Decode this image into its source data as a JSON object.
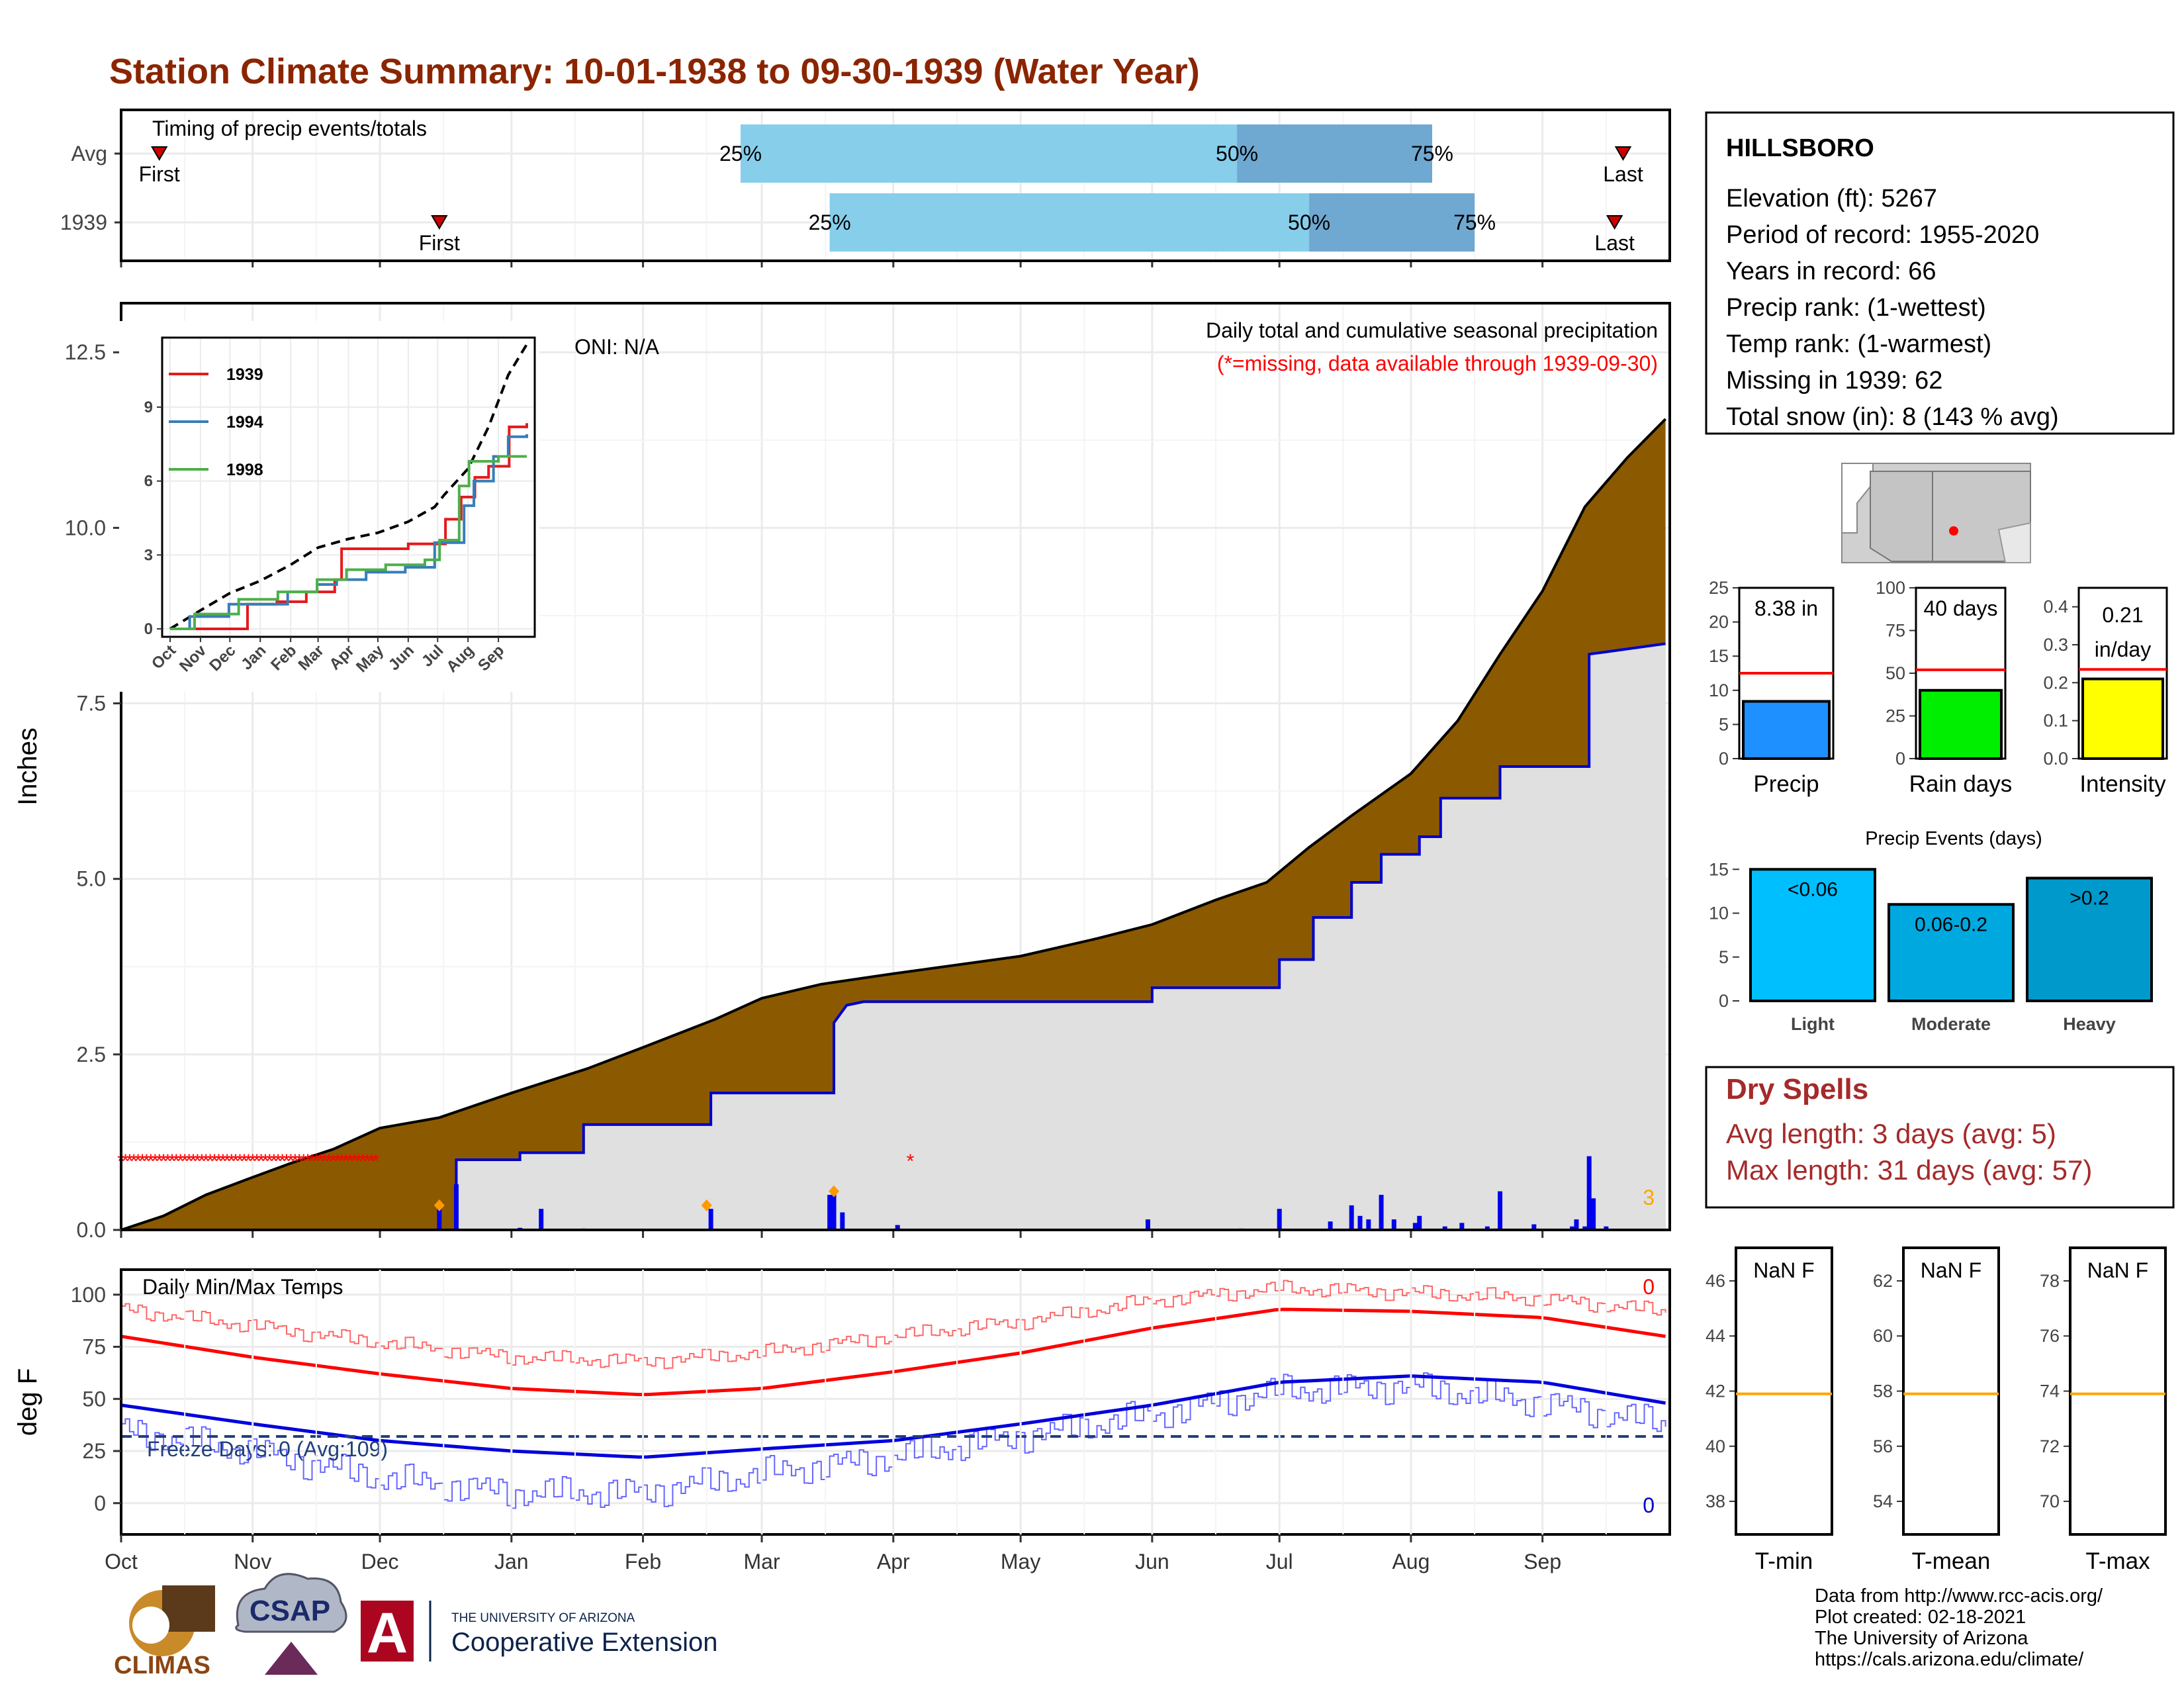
{
  "page": {
    "title": "Station Climate Summary: 10-01-1938 to 09-30-1939 (Water Year)",
    "credits": [
      "Data from http://www.rcc-acis.org/",
      "Plot created: 02-18-2021",
      "The University of Arizona",
      "https://cals.arizona.edu/climate/"
    ],
    "logos": {
      "climas": "CLIMAS",
      "csap": "CSAP",
      "ua_line1": "THE UNIVERSITY OF ARIZONA",
      "ua_line2": "Cooperative Extension",
      "ua_letter": "A"
    }
  },
  "info_box": {
    "station": "HILLSBORO",
    "lines": [
      "Elevation (ft): 5267",
      "Period of record: 1955-2020",
      "Years in record: 66",
      "Precip rank:  (1-wettest)",
      "Temp rank:  (1-warmest)",
      "Missing in 1939: 62",
      "Total snow (in): 8 (143 % avg)"
    ]
  },
  "dry_spells": {
    "title": "Dry Spells",
    "lines": [
      "Avg length: 3 days (avg: 5)",
      "Max length: 31 days (avg: 57)"
    ]
  },
  "chart_data": [
    {
      "type": "bar",
      "name": "timing",
      "title": "Timing of precip events/totals",
      "categories": [
        "Avg",
        "1939"
      ],
      "x_axis": "day of water year (Oct 1 = 0)",
      "rows": [
        {
          "label": "Avg",
          "first": 9,
          "p25": 146,
          "p50": 263,
          "p75": 309,
          "last": 354,
          "first_label": "First",
          "last_label": "Last",
          "p25_label": "25%",
          "p50_label": "50%",
          "p75_label": "75%"
        },
        {
          "label": "1939",
          "first": 75,
          "p25": 167,
          "p50": 280,
          "p75": 319,
          "last": 352,
          "first_label": "First",
          "last_label": "Last",
          "p25_label": "25%",
          "p50_label": "50%",
          "p75_label": "75%"
        }
      ],
      "colors": {
        "early": "#87ceeb",
        "late": "#6fa8d0",
        "marker": "#cc0000"
      }
    },
    {
      "type": "area",
      "name": "precip",
      "ylabel": "Inches",
      "ylim": [
        0,
        13.2
      ],
      "yticks": [
        "0.0",
        "2.5",
        "5.0",
        "7.5",
        "10.0",
        "12.5"
      ],
      "xticks": [
        "Oct",
        "Nov",
        "Dec",
        "Jan",
        "Feb",
        "Mar",
        "Apr",
        "May",
        "Jun",
        "Jul",
        "Aug",
        "Sep"
      ],
      "month_days": [
        0,
        31,
        61,
        92,
        123,
        151,
        182,
        212,
        243,
        273,
        304,
        335
      ],
      "annotation_right": [
        "Daily total and cumulative seasonal precipitation",
        "(*=missing, data available through 1939-09-30)"
      ],
      "oni": "ONI: N/A",
      "count_label": "3",
      "avg_cumulative": [
        [
          0,
          0
        ],
        [
          10,
          0.2
        ],
        [
          20,
          0.5
        ],
        [
          31,
          0.75
        ],
        [
          40,
          0.95
        ],
        [
          50,
          1.15
        ],
        [
          61,
          1.45
        ],
        [
          75,
          1.6
        ],
        [
          92,
          1.95
        ],
        [
          110,
          2.3
        ],
        [
          123,
          2.6
        ],
        [
          140,
          3.0
        ],
        [
          151,
          3.3
        ],
        [
          165,
          3.5
        ],
        [
          182,
          3.65
        ],
        [
          200,
          3.8
        ],
        [
          212,
          3.9
        ],
        [
          230,
          4.15
        ],
        [
          243,
          4.35
        ],
        [
          258,
          4.7
        ],
        [
          270,
          4.95
        ],
        [
          280,
          5.45
        ],
        [
          290,
          5.9
        ],
        [
          304,
          6.5
        ],
        [
          315,
          7.25
        ],
        [
          325,
          8.2
        ],
        [
          335,
          9.1
        ],
        [
          345,
          10.3
        ],
        [
          355,
          11.0
        ],
        [
          364,
          11.55
        ]
      ],
      "year_cumulative": [
        [
          0,
          0
        ],
        [
          79,
          0
        ],
        [
          79,
          1.0
        ],
        [
          94,
          1.0
        ],
        [
          94,
          1.1
        ],
        [
          109,
          1.1
        ],
        [
          109,
          1.5
        ],
        [
          139,
          1.5
        ],
        [
          139,
          1.95
        ],
        [
          168,
          1.95
        ],
        [
          168,
          2.95
        ],
        [
          171,
          3.2
        ],
        [
          175,
          3.25
        ],
        [
          243,
          3.25
        ],
        [
          243,
          3.45
        ],
        [
          273,
          3.45
        ],
        [
          273,
          3.85
        ],
        [
          281,
          3.85
        ],
        [
          281,
          4.45
        ],
        [
          290,
          4.45
        ],
        [
          290,
          4.95
        ],
        [
          297,
          4.95
        ],
        [
          297,
          5.35
        ],
        [
          306,
          5.35
        ],
        [
          306,
          5.6
        ],
        [
          311,
          5.6
        ],
        [
          311,
          6.15
        ],
        [
          325,
          6.15
        ],
        [
          325,
          6.6
        ],
        [
          346,
          6.6
        ],
        [
          346,
          8.2
        ],
        [
          364,
          8.35
        ]
      ],
      "daily_precip": [
        [
          75,
          0.3
        ],
        [
          79,
          0.65
        ],
        [
          94,
          0.03
        ],
        [
          99,
          0.3
        ],
        [
          109,
          0.02
        ],
        [
          139,
          0.3
        ],
        [
          167,
          0.5
        ],
        [
          168,
          0.55
        ],
        [
          170,
          0.25
        ],
        [
          183,
          0.07
        ],
        [
          242,
          0.15
        ],
        [
          264,
          0.02
        ],
        [
          273,
          0.3
        ],
        [
          285,
          0.12
        ],
        [
          290,
          0.35
        ],
        [
          292,
          0.2
        ],
        [
          294,
          0.15
        ],
        [
          297,
          0.5
        ],
        [
          300,
          0.15
        ],
        [
          305,
          0.1
        ],
        [
          306,
          0.2
        ],
        [
          312,
          0.05
        ],
        [
          316,
          0.1
        ],
        [
          322,
          0.05
        ],
        [
          324,
          0.02
        ],
        [
          325,
          0.55
        ],
        [
          333,
          0.08
        ],
        [
          342,
          0.05
        ],
        [
          343,
          0.15
        ],
        [
          345,
          0.05
        ],
        [
          346,
          1.05
        ],
        [
          347,
          0.45
        ],
        [
          350,
          0.05
        ]
      ],
      "missing": {
        "start": 0,
        "end": 60,
        "y": 1.0,
        "extra": [
          [
            186,
            1.0
          ]
        ],
        "symbol": "*"
      },
      "snow_markers": [
        [
          75,
          0.35
        ],
        [
          138,
          0.35
        ],
        [
          168,
          0.55
        ]
      ],
      "colors": {
        "avg_fill": "#8b5a00",
        "year_fill": "#e0e0e0",
        "year_line": "#0000cc",
        "daily_bar": "#0000ee",
        "missing": "#ff0000",
        "snow": "#ff9900"
      }
    },
    {
      "type": "line",
      "name": "inset",
      "xticks": [
        "Oct",
        "Nov",
        "Dec",
        "Jan",
        "Feb",
        "Mar",
        "Apr",
        "May",
        "Jun",
        "Jul",
        "Aug",
        "Sep"
      ],
      "yticks": [
        "0",
        "3",
        "6",
        "9"
      ],
      "ylim": [
        0,
        11.5
      ],
      "series": [
        {
          "name": "1939",
          "color": "#e41a1c",
          "values": [
            [
              0,
              0
            ],
            [
              79,
              0
            ],
            [
              79,
              1.0
            ],
            [
              109,
              1.1
            ],
            [
              139,
              1.5
            ],
            [
              168,
              2.0
            ],
            [
              175,
              3.25
            ],
            [
              243,
              3.45
            ],
            [
              281,
              4.45
            ],
            [
              297,
              5.35
            ],
            [
              311,
              6.15
            ],
            [
              325,
              6.6
            ],
            [
              346,
              8.2
            ],
            [
              364,
              8.35
            ]
          ]
        },
        {
          "name": "1994",
          "color": "#377eb8",
          "values": [
            [
              0,
              0
            ],
            [
              20,
              0.5
            ],
            [
              60,
              1.0
            ],
            [
              120,
              1.5
            ],
            [
              150,
              1.8
            ],
            [
              170,
              2.0
            ],
            [
              200,
              2.3
            ],
            [
              240,
              2.5
            ],
            [
              270,
              3.5
            ],
            [
              300,
              5.0
            ],
            [
              310,
              6.0
            ],
            [
              330,
              7.0
            ],
            [
              345,
              7.8
            ],
            [
              364,
              7.9
            ]
          ]
        },
        {
          "name": "1998",
          "color": "#4daf4a",
          "values": [
            [
              0,
              0
            ],
            [
              25,
              0.6
            ],
            [
              70,
              1.2
            ],
            [
              110,
              1.5
            ],
            [
              150,
              2.0
            ],
            [
              180,
              2.4
            ],
            [
              220,
              2.6
            ],
            [
              260,
              2.8
            ],
            [
              275,
              3.6
            ],
            [
              295,
              5.8
            ],
            [
              305,
              6.8
            ],
            [
              335,
              7.0
            ],
            [
              350,
              7.0
            ],
            [
              364,
              7.0
            ]
          ]
        }
      ],
      "avg_series": {
        "name": "avg",
        "color": "#000000",
        "values": [
          [
            0,
            0
          ],
          [
            31,
            0.75
          ],
          [
            61,
            1.45
          ],
          [
            92,
            1.95
          ],
          [
            123,
            2.6
          ],
          [
            151,
            3.3
          ],
          [
            182,
            3.65
          ],
          [
            212,
            3.9
          ],
          [
            243,
            4.35
          ],
          [
            270,
            4.95
          ],
          [
            280,
            5.45
          ],
          [
            304,
            6.5
          ],
          [
            325,
            8.2
          ],
          [
            345,
            10.3
          ],
          [
            364,
            11.55
          ]
        ]
      }
    },
    {
      "type": "line",
      "name": "temps",
      "title": "Daily Min/Max Temps",
      "ylabel": "deg F",
      "ylim": [
        -15,
        112
      ],
      "yticks": [
        "0",
        "25",
        "50",
        "75",
        "100"
      ],
      "xticks": [
        "Oct",
        "Nov",
        "Dec",
        "Jan",
        "Feb",
        "Mar",
        "Apr",
        "May",
        "Jun",
        "Jul",
        "Aug",
        "Sep"
      ],
      "freeze_line": 32,
      "freeze_label": "Freeze Days: 0 (Avg:109)",
      "count_top": "0",
      "count_bottom": "0",
      "avg_max": [
        [
          0,
          80
        ],
        [
          31,
          70
        ],
        [
          61,
          62
        ],
        [
          92,
          55
        ],
        [
          123,
          52
        ],
        [
          151,
          55
        ],
        [
          182,
          63
        ],
        [
          212,
          72
        ],
        [
          243,
          84
        ],
        [
          273,
          93
        ],
        [
          304,
          92
        ],
        [
          335,
          89
        ],
        [
          364,
          80
        ]
      ],
      "avg_min": [
        [
          0,
          47
        ],
        [
          31,
          38
        ],
        [
          61,
          30
        ],
        [
          92,
          25
        ],
        [
          123,
          22
        ],
        [
          151,
          26
        ],
        [
          182,
          30
        ],
        [
          212,
          38
        ],
        [
          243,
          47
        ],
        [
          273,
          58
        ],
        [
          304,
          61
        ],
        [
          335,
          58
        ],
        [
          364,
          48
        ]
      ],
      "obs_max": [
        [
          0,
          93
        ],
        [
          31,
          85
        ],
        [
          61,
          77
        ],
        [
          92,
          70
        ],
        [
          123,
          68
        ],
        [
          151,
          72
        ],
        [
          182,
          80
        ],
        [
          212,
          87
        ],
        [
          243,
          97
        ],
        [
          273,
          103
        ],
        [
          304,
          101
        ],
        [
          335,
          98
        ],
        [
          364,
          92
        ]
      ],
      "obs_min": [
        [
          0,
          35
        ],
        [
          31,
          25
        ],
        [
          61,
          12
        ],
        [
          92,
          5
        ],
        [
          123,
          5
        ],
        [
          151,
          14
        ],
        [
          182,
          22
        ],
        [
          212,
          32
        ],
        [
          243,
          42
        ],
        [
          273,
          54
        ],
        [
          304,
          56
        ],
        [
          335,
          48
        ],
        [
          364,
          38
        ]
      ],
      "colors": {
        "avg_max": "#ff0000",
        "avg_min": "#0000dd",
        "obs_max": "#ff6666",
        "obs_min": "#6666ff",
        "freeze": "#1f3f7a"
      }
    },
    {
      "type": "bar",
      "name": "precip_stats",
      "panels": [
        {
          "label": "Precip",
          "value": 8.38,
          "avg": 12.5,
          "value_label": "8.38 in",
          "ylim": [
            0,
            25
          ],
          "yticks": [
            "0",
            "5",
            "10",
            "15",
            "20",
            "25"
          ],
          "color": "#1e90ff"
        },
        {
          "label": "Rain days",
          "value": 40,
          "avg": 52,
          "value_label": "40 days",
          "ylim": [
            0,
            100
          ],
          "yticks": [
            "0",
            "25",
            "50",
            "75",
            "100"
          ],
          "color": "#00ee00"
        },
        {
          "label": "Intensity",
          "value": 0.21,
          "avg": 0.235,
          "value_label": "0.21 in/day",
          "ylim": [
            0,
            0.45
          ],
          "yticks": [
            "0.0",
            "0.1",
            "0.2",
            "0.3",
            "0.4"
          ],
          "color": "#ffff00"
        }
      ],
      "avg_color": "#ff0000"
    },
    {
      "type": "bar",
      "name": "precip_events",
      "title": "Precip Events (days)",
      "categories": [
        "Light",
        "Moderate",
        "Heavy"
      ],
      "values": [
        15,
        11,
        14
      ],
      "bar_labels": [
        "<0.06",
        "0.06-0.2",
        ">0.2"
      ],
      "ylim": [
        0,
        16
      ],
      "yticks": [
        "0",
        "5",
        "10",
        "15"
      ],
      "colors": [
        "#00bfff",
        "#00a8e0",
        "#0099cc"
      ]
    },
    {
      "type": "bar",
      "name": "temp_stats",
      "panels": [
        {
          "label": "T-min",
          "value_label": "NaN F",
          "avg": 41.9,
          "ylim": [
            36.8,
            47.2
          ],
          "yticks": [
            "38",
            "40",
            "42",
            "44",
            "46"
          ]
        },
        {
          "label": "T-mean",
          "value_label": "NaN F",
          "avg": 57.9,
          "ylim": [
            52.8,
            63.2
          ],
          "yticks": [
            "54",
            "56",
            "58",
            "60",
            "62"
          ]
        },
        {
          "label": "T-max",
          "value_label": "NaN F",
          "avg": 73.9,
          "ylim": [
            68.8,
            79.2
          ],
          "yticks": [
            "70",
            "72",
            "74",
            "76",
            "78"
          ]
        }
      ],
      "avg_color": "#ffa500"
    }
  ]
}
